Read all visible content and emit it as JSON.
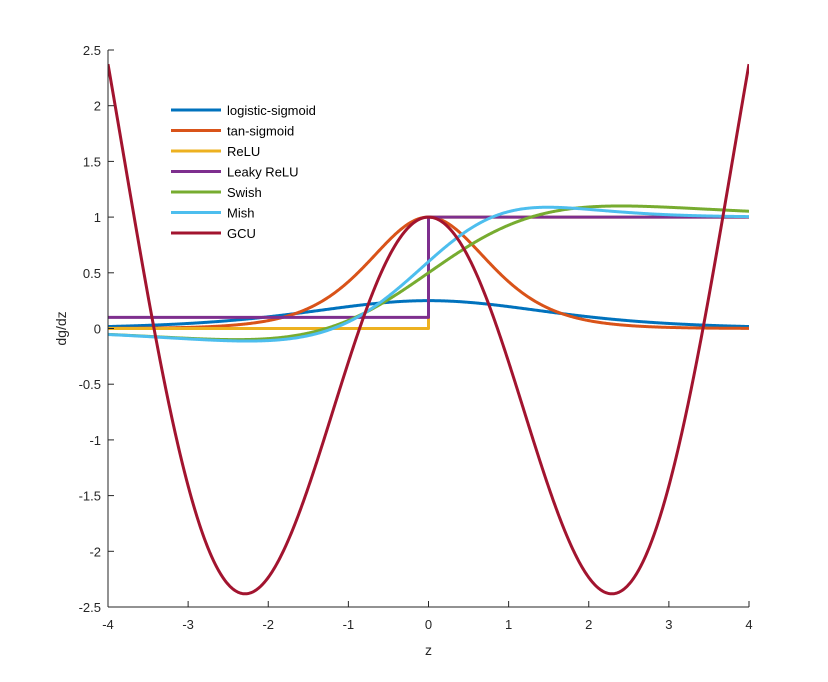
{
  "chart_data": {
    "type": "line",
    "title": "",
    "xlabel": "z",
    "ylabel": "dg/dz",
    "xlim": [
      -4,
      4
    ],
    "ylim": [
      -2.5,
      2.5
    ],
    "xticks": [
      -4,
      -3,
      -2,
      -1,
      0,
      1,
      2,
      3,
      4
    ],
    "yticks": [
      -2.5,
      -2,
      -1.5,
      -1,
      -0.5,
      0,
      0.5,
      1,
      1.5,
      2,
      2.5
    ],
    "grid": false,
    "legend_position": "top-left",
    "series": [
      {
        "name": "logistic-sigmoid",
        "color": "#0072BD",
        "function": "logistic_sigmoid_derivative"
      },
      {
        "name": "tan-sigmoid",
        "color": "#D95319",
        "function": "tanh_derivative"
      },
      {
        "name": "ReLU",
        "color": "#EDB120",
        "function": "relu_derivative"
      },
      {
        "name": "Leaky ReLU",
        "color": "#7E2F8E",
        "function": "leaky_relu_derivative",
        "leak": 0.1
      },
      {
        "name": "Swish",
        "color": "#77AC30",
        "function": "swish_derivative"
      },
      {
        "name": "Mish",
        "color": "#4DBEEE",
        "function": "mish_derivative"
      },
      {
        "name": "GCU",
        "color": "#A2142F",
        "function": "gcu_derivative"
      }
    ]
  }
}
